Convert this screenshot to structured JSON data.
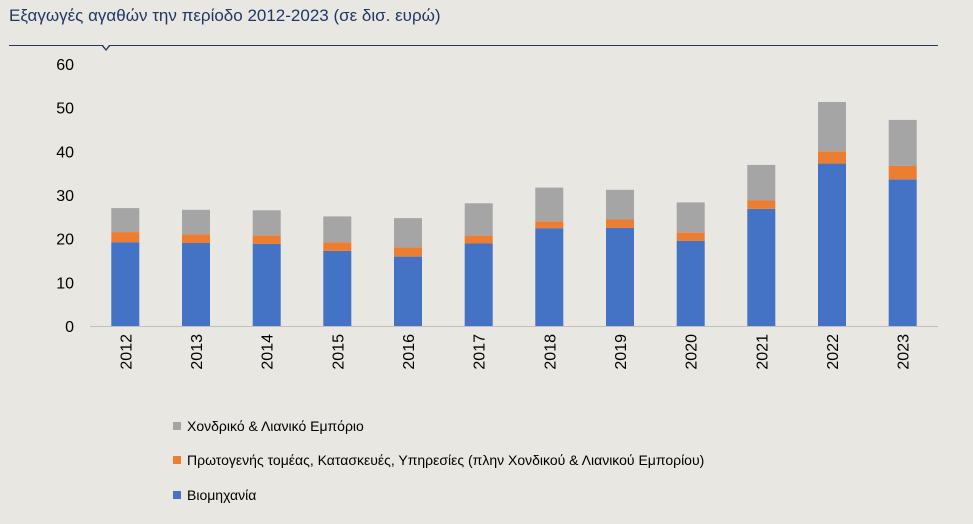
{
  "title": "Εξαγωγές αγαθών την περίοδο 2012-2023 (σε δισ. ευρώ)",
  "colors": {
    "title": "#1f3864",
    "rule": "#1f3864",
    "axis": "#bfbfbf"
  },
  "chart_data": {
    "type": "bar",
    "stacked": true,
    "title": "Εξαγωγές αγαθών την περίοδο 2012-2023 (σε δισ. ευρώ)",
    "xlabel": "",
    "ylabel": "",
    "ylim": [
      0,
      60
    ],
    "yticks": [
      0,
      10,
      20,
      30,
      40,
      50,
      60
    ],
    "grid": false,
    "legend_position": "bottom-left",
    "categories": [
      "2012",
      "2013",
      "2014",
      "2015",
      "2016",
      "2017",
      "2018",
      "2019",
      "2020",
      "2021",
      "2022",
      "2023"
    ],
    "series": [
      {
        "name": "Βιομηχανία",
        "color": "#4472c4",
        "values": [
          19.2,
          19.0,
          18.8,
          17.2,
          15.9,
          18.9,
          22.4,
          22.5,
          19.5,
          26.8,
          37.2,
          33.6
        ]
      },
      {
        "name": "Πρωτογενής τομέας, Κατασκευές, Υπηρεσίες (πλην Χονδικού & Λιανικού Εμπορίου)",
        "color": "#ed7d31",
        "values": [
          2.3,
          2.0,
          2.0,
          2.0,
          2.1,
          1.8,
          1.6,
          1.9,
          1.9,
          2.0,
          2.8,
          3.1
        ]
      },
      {
        "name": "Χονδρικό & Λιανικό Εμπόριο",
        "color": "#a5a5a5",
        "values": [
          5.5,
          5.6,
          5.7,
          5.9,
          6.7,
          7.4,
          7.7,
          6.8,
          6.9,
          8.1,
          11.3,
          10.5
        ]
      }
    ],
    "legend_order": [
      2,
      1,
      0
    ]
  }
}
